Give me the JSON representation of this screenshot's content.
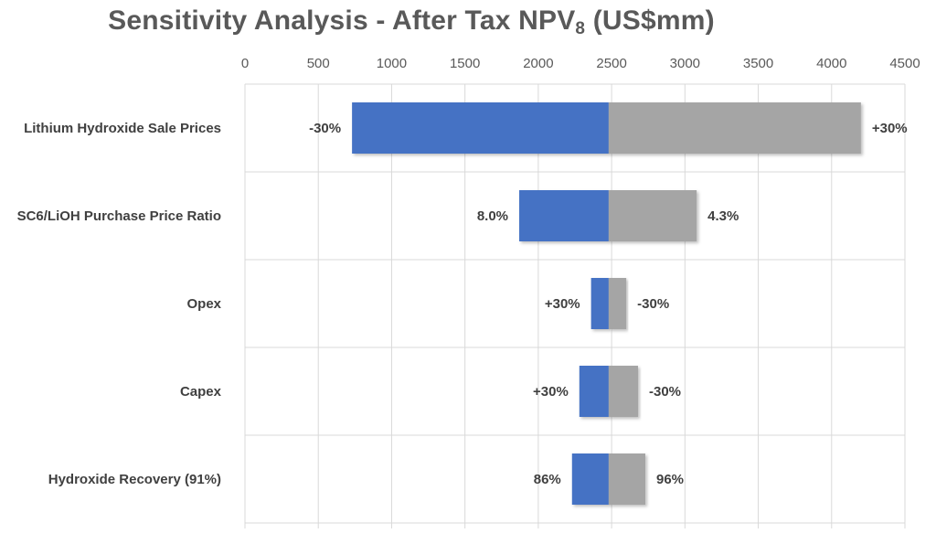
{
  "chart_title": {
    "main": "Sensitivity Analysis - After Tax NPV",
    "subscript": "8",
    "suffix": " (US$mm)"
  },
  "colors": {
    "low_bar": "#4472C4",
    "high_bar": "#A5A5A5",
    "gridline": "#D9D9D9",
    "text": "#404040"
  },
  "chart_data": {
    "type": "bar",
    "orientation": "horizontal",
    "subtype": "tornado",
    "title": "Sensitivity Analysis - After Tax NPV8 (US$mm)",
    "xlabel": "",
    "ylabel": "",
    "xlim": [
      0,
      4500
    ],
    "x_ticks": [
      0,
      500,
      1000,
      1500,
      2000,
      2500,
      3000,
      3500,
      4000,
      4500
    ],
    "x_axis_position": "top",
    "grid": true,
    "legend": "none",
    "base_value": 2480,
    "categories": [
      "Lithium Hydroxide Sale Prices",
      "SC6/LiOH Purchase Price Ratio",
      "Opex",
      "Capex",
      "Hydroxide Recovery (91%)"
    ],
    "series": [
      {
        "values": [
          730,
          1870,
          2360,
          2280,
          2230
        ],
        "labels": [
          "-30%",
          "8.0%",
          "+30%",
          "+30%",
          "86%"
        ]
      },
      {
        "values": [
          4200,
          3080,
          2600,
          2680,
          2730
        ],
        "labels": [
          "+30%",
          "4.3%",
          "-30%",
          "-30%",
          "96%"
        ]
      }
    ]
  }
}
